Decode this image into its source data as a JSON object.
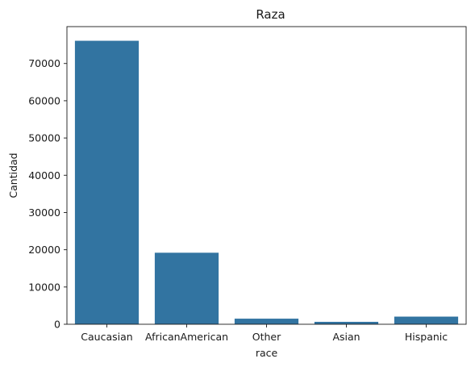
{
  "chart_data": {
    "type": "bar",
    "title": "Raza",
    "xlabel": "race",
    "ylabel": "Cantidad",
    "categories": [
      "Caucasian",
      "AfricanAmerican",
      "Other",
      "Asian",
      "Hispanic"
    ],
    "values": [
      76100,
      19200,
      1500,
      650,
      2050
    ],
    "ylim": [
      0,
      79900
    ],
    "yticks": [
      0,
      10000,
      20000,
      30000,
      40000,
      50000,
      60000,
      70000
    ],
    "bar_color": "#3274a1",
    "grid": false,
    "legend": "none"
  }
}
